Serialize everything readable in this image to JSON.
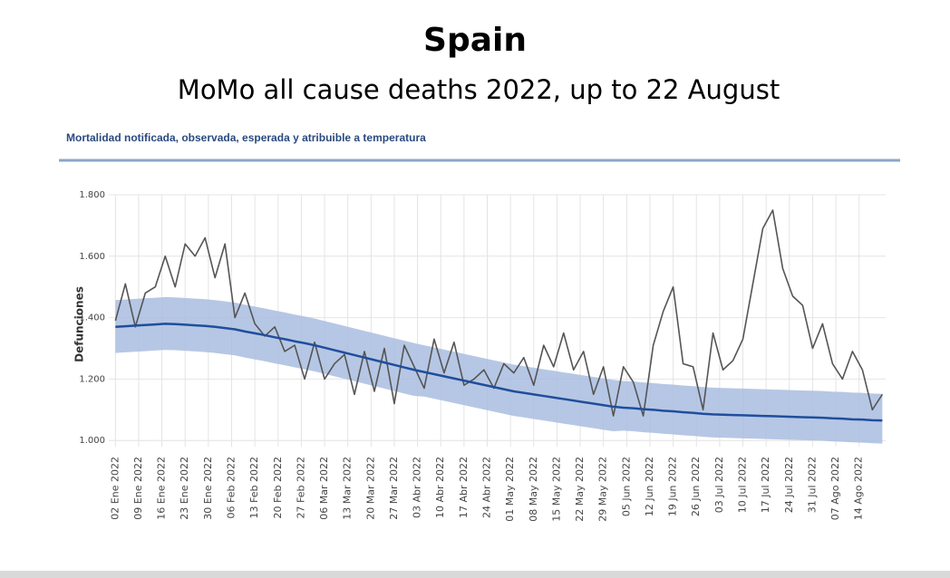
{
  "chart_data": {
    "type": "line",
    "title": "Spain",
    "subtitle": "MoMo all cause deaths 2022, up to 22 August",
    "header": "Mortalidad notificada, observada, esperada y atribuible a temperatura",
    "ylabel": "Defunciones",
    "x": [
      "2022-01-02",
      "2022-01-05",
      "2022-01-08",
      "2022-01-11",
      "2022-01-14",
      "2022-01-17",
      "2022-01-20",
      "2022-01-23",
      "2022-01-26",
      "2022-01-29",
      "2022-02-01",
      "2022-02-04",
      "2022-02-07",
      "2022-02-10",
      "2022-02-13",
      "2022-02-16",
      "2022-02-19",
      "2022-02-22",
      "2022-02-25",
      "2022-02-28",
      "2022-03-03",
      "2022-03-06",
      "2022-03-09",
      "2022-03-12",
      "2022-03-15",
      "2022-03-18",
      "2022-03-21",
      "2022-03-24",
      "2022-03-27",
      "2022-03-30",
      "2022-04-02",
      "2022-04-05",
      "2022-04-08",
      "2022-04-11",
      "2022-04-14",
      "2022-04-17",
      "2022-04-20",
      "2022-04-23",
      "2022-04-26",
      "2022-04-29",
      "2022-05-02",
      "2022-05-05",
      "2022-05-08",
      "2022-05-11",
      "2022-05-14",
      "2022-05-17",
      "2022-05-20",
      "2022-05-23",
      "2022-05-26",
      "2022-05-29",
      "2022-06-01",
      "2022-06-04",
      "2022-06-07",
      "2022-06-10",
      "2022-06-13",
      "2022-06-16",
      "2022-06-19",
      "2022-06-22",
      "2022-06-25",
      "2022-06-28",
      "2022-07-01",
      "2022-07-04",
      "2022-07-07",
      "2022-07-10",
      "2022-07-13",
      "2022-07-16",
      "2022-07-19",
      "2022-07-22",
      "2022-07-25",
      "2022-07-28",
      "2022-07-31",
      "2022-08-03",
      "2022-08-06",
      "2022-08-09",
      "2022-08-12",
      "2022-08-15",
      "2022-08-18",
      "2022-08-21"
    ],
    "band": {
      "color": "#a9bde0",
      "upper": [
        1457,
        1459,
        1461,
        1463,
        1465,
        1467,
        1466,
        1464,
        1462,
        1460,
        1457,
        1453,
        1449,
        1442,
        1436,
        1430,
        1423,
        1417,
        1410,
        1404,
        1397,
        1389,
        1381,
        1373,
        1365,
        1357,
        1349,
        1341,
        1333,
        1325,
        1317,
        1310,
        1303,
        1296,
        1289,
        1282,
        1275,
        1268,
        1261,
        1254,
        1247,
        1242,
        1237,
        1232,
        1227,
        1222,
        1217,
        1212,
        1207,
        1202,
        1197,
        1194,
        1192,
        1189,
        1187,
        1184,
        1182,
        1179,
        1177,
        1174,
        1172,
        1171,
        1170,
        1169,
        1168,
        1167,
        1166,
        1165,
        1164,
        1163,
        1162,
        1161,
        1159,
        1158,
        1156,
        1155,
        1153,
        1152
      ],
      "lower": [
        1285,
        1287,
        1289,
        1291,
        1293,
        1295,
        1294,
        1292,
        1290,
        1288,
        1285,
        1281,
        1277,
        1270,
        1264,
        1258,
        1251,
        1245,
        1238,
        1232,
        1225,
        1217,
        1209,
        1201,
        1193,
        1185,
        1177,
        1169,
        1161,
        1153,
        1145,
        1143,
        1136,
        1129,
        1122,
        1115,
        1108,
        1101,
        1094,
        1087,
        1080,
        1075,
        1070,
        1065,
        1060,
        1055,
        1050,
        1045,
        1040,
        1035,
        1030,
        1032,
        1030,
        1027,
        1025,
        1022,
        1020,
        1017,
        1015,
        1012,
        1010,
        1009,
        1008,
        1007,
        1006,
        1005,
        1004,
        1003,
        1002,
        1001,
        1000,
        999,
        997,
        996,
        994,
        993,
        991,
        990
      ]
    },
    "series": [
      {
        "color": "#555555",
        "values": [
          1390,
          1510,
          1370,
          1480,
          1500,
          1600,
          1500,
          1640,
          1600,
          1660,
          1530,
          1640,
          1400,
          1480,
          1380,
          1340,
          1370,
          1290,
          1310,
          1200,
          1320,
          1200,
          1250,
          1280,
          1150,
          1290,
          1160,
          1300,
          1120,
          1310,
          1240,
          1170,
          1330,
          1220,
          1320,
          1180,
          1200,
          1230,
          1170,
          1250,
          1220,
          1270,
          1180,
          1310,
          1240,
          1350,
          1230,
          1290,
          1150,
          1240,
          1080,
          1240,
          1190,
          1080,
          1310,
          1420,
          1500,
          1250,
          1240,
          1100,
          1350,
          1230,
          1260,
          1330,
          1510,
          1690,
          1750,
          1560,
          1470,
          1440,
          1300,
          1380,
          1250,
          1200,
          1290,
          1230,
          1100,
          1150
        ]
      },
      {
        "color": "#1f4e9c",
        "values": [
          1370,
          1372,
          1374,
          1376,
          1378,
          1380,
          1379,
          1377,
          1375,
          1373,
          1370,
          1366,
          1362,
          1355,
          1349,
          1343,
          1336,
          1330,
          1323,
          1317,
          1310,
          1302,
          1294,
          1286,
          1278,
          1270,
          1262,
          1254,
          1246,
          1238,
          1230,
          1223,
          1216,
          1209,
          1202,
          1195,
          1188,
          1181,
          1174,
          1167,
          1160,
          1155,
          1150,
          1145,
          1140,
          1135,
          1130,
          1125,
          1120,
          1115,
          1110,
          1107,
          1105,
          1102,
          1100,
          1097,
          1095,
          1092,
          1090,
          1087,
          1085,
          1084,
          1083,
          1082,
          1081,
          1080,
          1079,
          1078,
          1077,
          1076,
          1075,
          1074,
          1072,
          1071,
          1069,
          1068,
          1066,
          1065
        ]
      }
    ],
    "xlim": [
      "2021-12-31",
      "2022-08-22"
    ],
    "xticks": [
      {
        "value": "2022-01-02",
        "label": "02 Ene 2022"
      },
      {
        "value": "2022-01-09",
        "label": "09 Ene 2022"
      },
      {
        "value": "2022-01-16",
        "label": "16 Ene 2022"
      },
      {
        "value": "2022-01-23",
        "label": "23 Ene 2022"
      },
      {
        "value": "2022-01-30",
        "label": "30 Ene 2022"
      },
      {
        "value": "2022-02-06",
        "label": "06 Feb 2022"
      },
      {
        "value": "2022-02-13",
        "label": "13 Feb 2022"
      },
      {
        "value": "2022-02-20",
        "label": "20 Feb 2022"
      },
      {
        "value": "2022-02-27",
        "label": "27 Feb 2022"
      },
      {
        "value": "2022-03-06",
        "label": "06 Mar 2022"
      },
      {
        "value": "2022-03-13",
        "label": "13 Mar 2022"
      },
      {
        "value": "2022-03-20",
        "label": "20 Mar 2022"
      },
      {
        "value": "2022-03-27",
        "label": "27 Mar 2022"
      },
      {
        "value": "2022-04-03",
        "label": "03 Abr 2022"
      },
      {
        "value": "2022-04-10",
        "label": "10 Abr 2022"
      },
      {
        "value": "2022-04-17",
        "label": "17 Abr 2022"
      },
      {
        "value": "2022-04-24",
        "label": "24 Abr 2022"
      },
      {
        "value": "2022-05-01",
        "label": "01 May 2022"
      },
      {
        "value": "2022-05-08",
        "label": "08 May 2022"
      },
      {
        "value": "2022-05-15",
        "label": "15 May 2022"
      },
      {
        "value": "2022-05-22",
        "label": "22 May 2022"
      },
      {
        "value": "2022-05-29",
        "label": "29 May 2022"
      },
      {
        "value": "2022-06-05",
        "label": "05 Jun 2022"
      },
      {
        "value": "2022-06-12",
        "label": "12 Jun 2022"
      },
      {
        "value": "2022-06-19",
        "label": "19 Jun 2022"
      },
      {
        "value": "2022-06-26",
        "label": "26 Jun 2022"
      },
      {
        "value": "2022-07-03",
        "label": "03 Jul 2022"
      },
      {
        "value": "2022-07-10",
        "label": "10 Jul 2022"
      },
      {
        "value": "2022-07-17",
        "label": "17 Jul 2022"
      },
      {
        "value": "2022-07-24",
        "label": "24 Jul 2022"
      },
      {
        "value": "2022-07-31",
        "label": "31 Jul 2022"
      },
      {
        "value": "2022-08-07",
        "label": "07 Ago 2022"
      },
      {
        "value": "2022-08-14",
        "label": "14 Ago 2022"
      }
    ],
    "ylim": [
      980,
      1800
    ],
    "yticks": [
      {
        "value": 1000,
        "label": "1.000"
      },
      {
        "value": 1200,
        "label": "1.200"
      },
      {
        "value": 1400,
        "label": "1.400"
      },
      {
        "value": 1600,
        "label": "1.600"
      },
      {
        "value": 1800,
        "label": "1.800"
      }
    ],
    "grid": true
  }
}
